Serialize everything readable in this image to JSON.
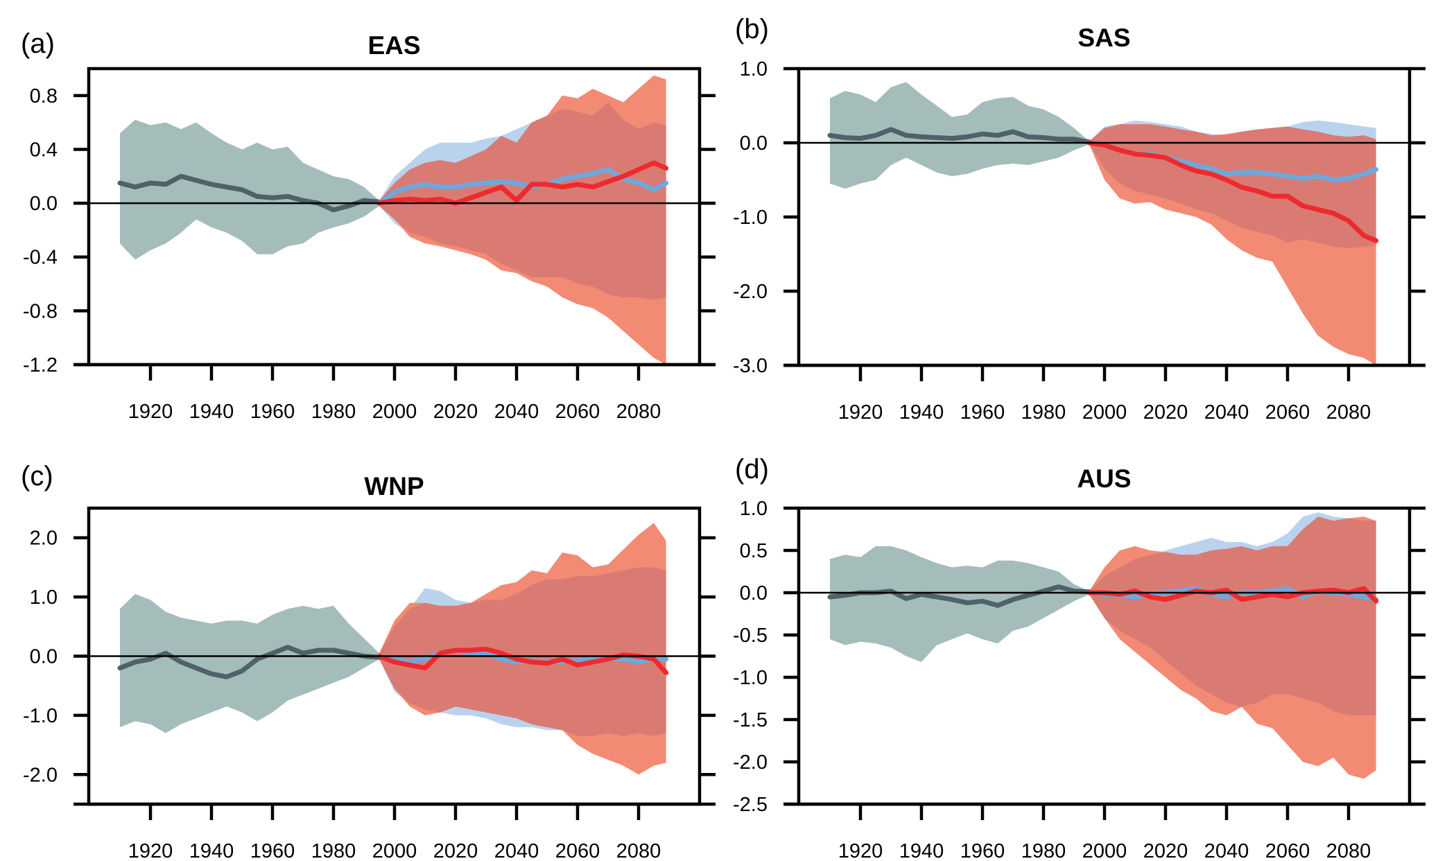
{
  "figure": {
    "colors": {
      "historical_band": "#a5bdba",
      "historical_line": "#4e6268",
      "low_band": "#b9d3ef",
      "low_line": "#6fa8dc",
      "high_band": "#f38a74",
      "overlap_band": "#d97b73",
      "high_line": "#ee2a2e",
      "axis": "#000000"
    }
  },
  "chart_data": [
    {
      "type": "area",
      "panel_label": "(a)",
      "title": "EAS",
      "xlabel": "",
      "ylabel": "",
      "xlim": [
        1900,
        2100
      ],
      "ylim": [
        -1.2,
        1.0
      ],
      "grid": false,
      "zero_line": true,
      "x_ticks": [
        1920,
        1940,
        1960,
        1980,
        2000,
        2020,
        2040,
        2060,
        2080
      ],
      "x_tick_labels": [
        "1920",
        "1940",
        "1960",
        "1980",
        "2000",
        "2020",
        "2040",
        "2060",
        "2080"
      ],
      "y_ticks": [
        0.8,
        0.4,
        0.0,
        -0.4,
        -0.8,
        -1.2
      ],
      "y_tick_labels": [
        "0.8",
        "0.4",
        "0.0",
        "-0.4",
        "-0.8",
        "-1.2"
      ],
      "historical": {
        "x": [
          1910,
          1915,
          1920,
          1925,
          1930,
          1935,
          1940,
          1945,
          1950,
          1955,
          1960,
          1965,
          1970,
          1975,
          1980,
          1985,
          1990,
          1995
        ],
        "mean": [
          0.15,
          0.12,
          0.15,
          0.14,
          0.2,
          0.17,
          0.14,
          0.12,
          0.1,
          0.05,
          0.04,
          0.05,
          0.02,
          0.0,
          -0.05,
          -0.02,
          0.02,
          0.01
        ],
        "upper": [
          0.52,
          0.62,
          0.58,
          0.6,
          0.55,
          0.6,
          0.52,
          0.45,
          0.4,
          0.45,
          0.4,
          0.42,
          0.3,
          0.25,
          0.2,
          0.18,
          0.12,
          0.02
        ],
        "lower": [
          -0.3,
          -0.42,
          -0.35,
          -0.3,
          -0.22,
          -0.12,
          -0.18,
          -0.22,
          -0.28,
          -0.38,
          -0.38,
          -0.32,
          -0.3,
          -0.22,
          -0.18,
          -0.15,
          -0.1,
          -0.02
        ]
      },
      "future_x": [
        1995,
        2000,
        2005,
        2010,
        2015,
        2020,
        2025,
        2030,
        2035,
        2040,
        2045,
        2050,
        2055,
        2060,
        2065,
        2070,
        2075,
        2080,
        2085,
        2089
      ],
      "low_scenario": {
        "mean": [
          0.0,
          0.08,
          0.12,
          0.14,
          0.12,
          0.12,
          0.14,
          0.15,
          0.16,
          0.15,
          0.12,
          0.14,
          0.18,
          0.2,
          0.22,
          0.25,
          0.18,
          0.15,
          0.1,
          0.15
        ],
        "upper": [
          0.02,
          0.2,
          0.3,
          0.4,
          0.45,
          0.45,
          0.45,
          0.48,
          0.5,
          0.55,
          0.6,
          0.65,
          0.7,
          0.68,
          0.65,
          0.75,
          0.62,
          0.55,
          0.6,
          0.58
        ],
        "lower": [
          -0.02,
          -0.15,
          -0.22,
          -0.25,
          -0.3,
          -0.32,
          -0.35,
          -0.38,
          -0.45,
          -0.5,
          -0.55,
          -0.55,
          -0.55,
          -0.6,
          -0.62,
          -0.68,
          -0.7,
          -0.7,
          -0.72,
          -0.7
        ]
      },
      "high_scenario": {
        "mean": [
          0.0,
          0.02,
          0.03,
          0.02,
          0.03,
          0.0,
          0.04,
          0.08,
          0.12,
          0.02,
          0.14,
          0.14,
          0.12,
          0.14,
          0.12,
          0.16,
          0.2,
          0.25,
          0.3,
          0.26
        ],
        "upper": [
          0.02,
          0.15,
          0.25,
          0.3,
          0.32,
          0.3,
          0.35,
          0.4,
          0.5,
          0.45,
          0.6,
          0.65,
          0.8,
          0.78,
          0.85,
          0.8,
          0.75,
          0.85,
          0.95,
          0.92
        ],
        "lower": [
          -0.02,
          -0.12,
          -0.25,
          -0.3,
          -0.32,
          -0.35,
          -0.38,
          -0.42,
          -0.5,
          -0.52,
          -0.58,
          -0.62,
          -0.7,
          -0.75,
          -0.78,
          -0.85,
          -0.95,
          -1.05,
          -1.15,
          -1.2
        ]
      }
    },
    {
      "type": "area",
      "panel_label": "(b)",
      "title": "SAS",
      "xlabel": "",
      "ylabel": "",
      "xlim": [
        1900,
        2100
      ],
      "ylim": [
        -3.0,
        1.0
      ],
      "grid": false,
      "zero_line": true,
      "x_ticks": [
        1920,
        1940,
        1960,
        1980,
        2000,
        2020,
        2040,
        2060,
        2080
      ],
      "x_tick_labels": [
        "1920",
        "1940",
        "1960",
        "1980",
        "2000",
        "2020",
        "2040",
        "2060",
        "2080"
      ],
      "y_ticks": [
        1.0,
        0.0,
        -1.0,
        -2.0,
        -3.0
      ],
      "y_tick_labels": [
        "1.0",
        "0.0",
        "-1.0",
        "-2.0",
        "-3.0"
      ],
      "historical": {
        "x": [
          1910,
          1915,
          1920,
          1925,
          1930,
          1935,
          1940,
          1945,
          1950,
          1955,
          1960,
          1965,
          1970,
          1975,
          1980,
          1985,
          1990,
          1995
        ],
        "mean": [
          0.1,
          0.07,
          0.06,
          0.1,
          0.18,
          0.1,
          0.08,
          0.07,
          0.06,
          0.08,
          0.12,
          0.1,
          0.15,
          0.08,
          0.07,
          0.05,
          0.05,
          0.01
        ],
        "upper": [
          0.6,
          0.7,
          0.65,
          0.55,
          0.75,
          0.82,
          0.65,
          0.5,
          0.35,
          0.38,
          0.55,
          0.6,
          0.62,
          0.5,
          0.45,
          0.35,
          0.2,
          0.02
        ],
        "lower": [
          -0.55,
          -0.62,
          -0.55,
          -0.5,
          -0.3,
          -0.2,
          -0.3,
          -0.4,
          -0.45,
          -0.42,
          -0.35,
          -0.3,
          -0.28,
          -0.3,
          -0.25,
          -0.2,
          -0.1,
          -0.02
        ]
      },
      "future_x": [
        1995,
        2000,
        2005,
        2010,
        2015,
        2020,
        2025,
        2030,
        2035,
        2040,
        2045,
        2050,
        2055,
        2060,
        2065,
        2070,
        2075,
        2080,
        2085,
        2089
      ],
      "low_scenario": {
        "mean": [
          0.0,
          -0.02,
          -0.1,
          -0.15,
          -0.15,
          -0.2,
          -0.25,
          -0.3,
          -0.35,
          -0.42,
          -0.4,
          -0.4,
          -0.42,
          -0.45,
          -0.48,
          -0.45,
          -0.5,
          -0.48,
          -0.42,
          -0.36
        ],
        "upper": [
          0.02,
          0.22,
          0.25,
          0.3,
          0.28,
          0.25,
          0.22,
          0.15,
          0.12,
          0.1,
          0.15,
          0.18,
          0.2,
          0.22,
          0.28,
          0.3,
          0.28,
          0.25,
          0.22,
          0.2
        ],
        "lower": [
          -0.02,
          -0.35,
          -0.55,
          -0.65,
          -0.7,
          -0.75,
          -0.82,
          -0.9,
          -0.95,
          -1.05,
          -1.15,
          -1.2,
          -1.25,
          -1.35,
          -1.3,
          -1.35,
          -1.4,
          -1.42,
          -1.4,
          -1.38
        ]
      },
      "high_scenario": {
        "mean": [
          0.0,
          -0.03,
          -0.1,
          -0.15,
          -0.17,
          -0.2,
          -0.3,
          -0.38,
          -0.42,
          -0.5,
          -0.6,
          -0.65,
          -0.72,
          -0.72,
          -0.85,
          -0.9,
          -0.95,
          -1.05,
          -1.25,
          -1.32
        ],
        "upper": [
          0.02,
          0.2,
          0.25,
          0.25,
          0.25,
          0.22,
          0.18,
          0.15,
          0.1,
          0.12,
          0.15,
          0.18,
          0.2,
          0.22,
          0.18,
          0.15,
          0.1,
          0.08,
          0.1,
          0.05
        ],
        "lower": [
          -0.02,
          -0.5,
          -0.75,
          -0.82,
          -0.8,
          -0.9,
          -0.95,
          -1.0,
          -1.1,
          -1.3,
          -1.45,
          -1.55,
          -1.6,
          -1.95,
          -2.3,
          -2.6,
          -2.75,
          -2.85,
          -2.9,
          -3.0
        ]
      }
    },
    {
      "type": "area",
      "panel_label": "(c)",
      "title": "WNP",
      "xlabel": "",
      "ylabel": "",
      "xlim": [
        1900,
        2100
      ],
      "ylim": [
        -2.5,
        2.5
      ],
      "grid": false,
      "zero_line": true,
      "x_ticks": [
        1920,
        1940,
        1960,
        1980,
        2000,
        2020,
        2040,
        2060,
        2080
      ],
      "x_tick_labels": [
        "1920",
        "1940",
        "1960",
        "1980",
        "2000",
        "2020",
        "2040",
        "2060",
        "2080"
      ],
      "y_ticks": [
        2.0,
        1.0,
        0.0,
        -1.0,
        -2.0
      ],
      "y_tick_labels": [
        "2.0",
        "1.0",
        "0.0",
        "-1.0",
        "-2.0"
      ],
      "historical": {
        "x": [
          1910,
          1915,
          1920,
          1925,
          1930,
          1935,
          1940,
          1945,
          1950,
          1955,
          1960,
          1965,
          1970,
          1975,
          1980,
          1985,
          1990,
          1995
        ],
        "mean": [
          -0.2,
          -0.1,
          -0.05,
          0.05,
          -0.1,
          -0.2,
          -0.3,
          -0.35,
          -0.25,
          -0.05,
          0.05,
          0.15,
          0.05,
          0.1,
          0.1,
          0.05,
          0.0,
          -0.02
        ],
        "upper": [
          0.8,
          1.05,
          0.95,
          0.75,
          0.65,
          0.6,
          0.55,
          0.6,
          0.6,
          0.55,
          0.7,
          0.8,
          0.85,
          0.8,
          0.85,
          0.55,
          0.3,
          0.05
        ],
        "lower": [
          -1.2,
          -1.1,
          -1.15,
          -1.3,
          -1.15,
          -1.05,
          -0.95,
          -0.85,
          -0.95,
          -1.1,
          -0.95,
          -0.75,
          -0.65,
          -0.55,
          -0.45,
          -0.35,
          -0.2,
          -0.05
        ]
      },
      "future_x": [
        1995,
        2000,
        2005,
        2010,
        2015,
        2020,
        2025,
        2030,
        2035,
        2040,
        2045,
        2050,
        2055,
        2060,
        2065,
        2070,
        2075,
        2080,
        2085,
        2089
      ],
      "low_scenario": {
        "mean": [
          0.0,
          -0.05,
          -0.1,
          -0.05,
          0.05,
          0.1,
          0.05,
          0.05,
          -0.05,
          -0.1,
          -0.08,
          -0.1,
          -0.1,
          -0.08,
          -0.05,
          -0.05,
          -0.05,
          -0.1,
          -0.05,
          -0.05
        ],
        "upper": [
          0.05,
          0.5,
          0.8,
          1.15,
          1.1,
          0.95,
          0.9,
          0.95,
          0.95,
          1.05,
          1.2,
          1.3,
          1.3,
          1.35,
          1.35,
          1.4,
          1.45,
          1.5,
          1.5,
          1.45
        ],
        "lower": [
          -0.05,
          -0.6,
          -0.8,
          -0.9,
          -0.95,
          -1.0,
          -1.0,
          -1.05,
          -1.15,
          -1.2,
          -1.2,
          -1.25,
          -1.25,
          -1.35,
          -1.35,
          -1.3,
          -1.35,
          -1.3,
          -1.35,
          -1.3
        ]
      },
      "high_scenario": {
        "mean": [
          0.0,
          -0.1,
          -0.15,
          -0.2,
          0.05,
          0.1,
          0.1,
          0.12,
          0.05,
          -0.05,
          -0.1,
          -0.12,
          -0.05,
          -0.15,
          -0.1,
          -0.05,
          0.02,
          0.0,
          -0.05,
          -0.28
        ],
        "upper": [
          0.05,
          0.6,
          0.9,
          0.9,
          0.85,
          0.85,
          0.9,
          1.05,
          1.2,
          1.25,
          1.45,
          1.4,
          1.75,
          1.7,
          1.5,
          1.55,
          1.8,
          2.05,
          2.25,
          1.95
        ],
        "lower": [
          -0.05,
          -0.55,
          -0.85,
          -1.0,
          -0.95,
          -0.85,
          -0.9,
          -0.95,
          -1.0,
          -1.05,
          -1.15,
          -1.2,
          -1.25,
          -1.5,
          -1.65,
          -1.75,
          -1.85,
          -2.0,
          -1.85,
          -1.8
        ]
      }
    },
    {
      "type": "area",
      "panel_label": "(d)",
      "title": "AUS",
      "xlabel": "",
      "ylabel": "",
      "xlim": [
        1900,
        2100
      ],
      "ylim": [
        -2.5,
        1.0
      ],
      "grid": false,
      "zero_line": true,
      "x_ticks": [
        1920,
        1940,
        1960,
        1980,
        2000,
        2020,
        2040,
        2060,
        2080
      ],
      "x_tick_labels": [
        "1920",
        "1940",
        "1960",
        "1980",
        "2000",
        "2020",
        "2040",
        "2060",
        "2080"
      ],
      "y_ticks": [
        1.0,
        0.5,
        0.0,
        -0.5,
        -1.0,
        -1.5,
        -2.0,
        -2.5
      ],
      "y_tick_labels": [
        "1.0",
        "0.5",
        "0.0",
        "-0.5",
        "-1.0",
        "-1.5",
        "-2.0",
        "-2.5"
      ],
      "historical": {
        "x": [
          1910,
          1915,
          1920,
          1925,
          1930,
          1935,
          1940,
          1945,
          1950,
          1955,
          1960,
          1965,
          1970,
          1975,
          1980,
          1985,
          1990,
          1995
        ],
        "mean": [
          -0.05,
          -0.03,
          0.0,
          0.0,
          0.02,
          -0.07,
          -0.02,
          -0.05,
          -0.08,
          -0.12,
          -0.1,
          -0.15,
          -0.08,
          -0.03,
          0.02,
          0.07,
          0.02,
          0.01
        ],
        "upper": [
          0.4,
          0.45,
          0.42,
          0.55,
          0.55,
          0.5,
          0.42,
          0.35,
          0.3,
          0.32,
          0.3,
          0.38,
          0.38,
          0.35,
          0.3,
          0.25,
          0.1,
          0.02
        ],
        "lower": [
          -0.55,
          -0.62,
          -0.58,
          -0.6,
          -0.65,
          -0.75,
          -0.82,
          -0.62,
          -0.55,
          -0.48,
          -0.55,
          -0.6,
          -0.45,
          -0.4,
          -0.3,
          -0.2,
          -0.1,
          -0.02
        ]
      },
      "future_x": [
        1995,
        2000,
        2005,
        2010,
        2015,
        2020,
        2025,
        2030,
        2035,
        2040,
        2045,
        2050,
        2055,
        2060,
        2065,
        2070,
        2075,
        2080,
        2085,
        2089
      ],
      "low_scenario": {
        "mean": [
          0.0,
          -0.02,
          -0.03,
          -0.05,
          -0.02,
          0.0,
          0.02,
          0.05,
          -0.02,
          -0.05,
          0.0,
          0.0,
          0.02,
          0.05,
          -0.05,
          0.02,
          0.0,
          -0.02,
          -0.05,
          -0.08
        ],
        "upper": [
          0.02,
          0.2,
          0.3,
          0.4,
          0.45,
          0.5,
          0.55,
          0.6,
          0.65,
          0.6,
          0.6,
          0.55,
          0.6,
          0.7,
          0.9,
          0.95,
          0.9,
          0.88,
          0.85,
          0.85
        ],
        "lower": [
          -0.02,
          -0.3,
          -0.45,
          -0.55,
          -0.65,
          -0.8,
          -0.95,
          -1.1,
          -1.2,
          -1.3,
          -1.35,
          -1.3,
          -1.2,
          -1.2,
          -1.25,
          -1.3,
          -1.4,
          -1.45,
          -1.45,
          -1.45
        ]
      },
      "high_scenario": {
        "mean": [
          0.0,
          0.0,
          -0.02,
          0.02,
          -0.05,
          -0.08,
          -0.03,
          0.02,
          0.0,
          0.03,
          -0.08,
          -0.05,
          -0.02,
          -0.05,
          0.0,
          0.02,
          0.03,
          0.0,
          0.05,
          -0.1
        ],
        "upper": [
          0.02,
          0.3,
          0.5,
          0.55,
          0.5,
          0.48,
          0.45,
          0.45,
          0.5,
          0.52,
          0.55,
          0.5,
          0.55,
          0.55,
          0.75,
          0.9,
          0.85,
          0.88,
          0.9,
          0.85
        ],
        "lower": [
          -0.02,
          -0.3,
          -0.55,
          -0.7,
          -0.85,
          -1.0,
          -1.15,
          -1.25,
          -1.4,
          -1.45,
          -1.35,
          -1.55,
          -1.6,
          -1.8,
          -2.0,
          -2.05,
          -1.95,
          -2.15,
          -2.2,
          -2.1
        ]
      }
    }
  ]
}
